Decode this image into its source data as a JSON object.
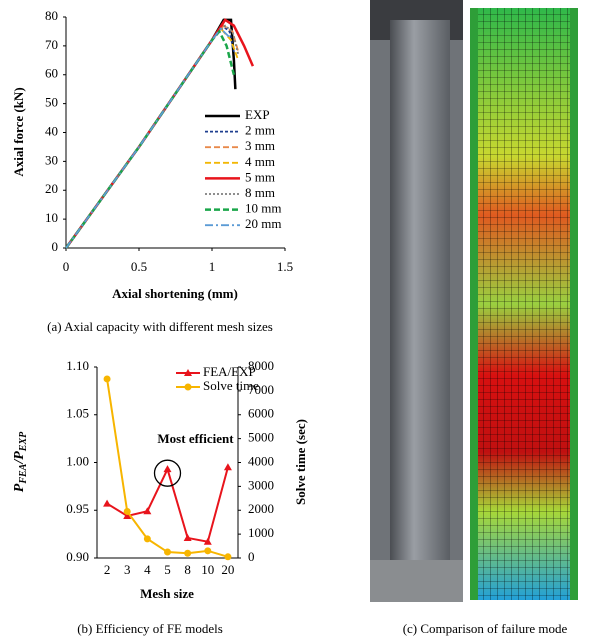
{
  "chart_data": [
    {
      "type": "line",
      "caption": "(a) Axial capacity with different mesh sizes",
      "xlabel": "Axial shortening (mm)",
      "ylabel": "Axial force (kN)",
      "xlim": [
        0,
        1.5
      ],
      "xticks": [
        0,
        0.5,
        1,
        1.5
      ],
      "ylim": [
        0,
        80
      ],
      "yticks": [
        0,
        10,
        20,
        30,
        40,
        50,
        60,
        70,
        80
      ],
      "legend": "right",
      "series": [
        {
          "name": "EXP",
          "color": "#000000",
          "dash": "solid",
          "x": [
            0,
            0.5,
            1.0,
            1.08,
            1.13,
            1.15,
            1.16
          ],
          "values": [
            0,
            35,
            72,
            79,
            79,
            65,
            55
          ]
        },
        {
          "name": "2 mm",
          "color": "#1f3f8f",
          "dash": "dash",
          "x": [
            0,
            0.5,
            1.0,
            1.07,
            1.12,
            1.15
          ],
          "values": [
            0,
            35,
            72,
            77,
            75,
            68
          ]
        },
        {
          "name": "3 mm",
          "color": "#e8894a",
          "dash": "longdash",
          "x": [
            0,
            0.5,
            1.0,
            1.08,
            1.14,
            1.18
          ],
          "values": [
            0,
            35,
            72,
            77,
            75,
            68
          ]
        },
        {
          "name": "4 mm",
          "color": "#f2b705",
          "dash": "longdash",
          "x": [
            0,
            0.5,
            1.0,
            1.06,
            1.13,
            1.18
          ],
          "values": [
            0,
            35,
            72,
            76,
            72,
            65
          ]
        },
        {
          "name": "5 mm",
          "color": "#e8141c",
          "dash": "solid",
          "x": [
            0,
            0.5,
            1.0,
            1.09,
            1.15,
            1.22,
            1.28
          ],
          "values": [
            0,
            35,
            72,
            79,
            77,
            70,
            63
          ]
        },
        {
          "name": "8 mm",
          "color": "#7f7f7f",
          "dash": "dot",
          "x": [
            0,
            0.5,
            1.0,
            1.09,
            1.14,
            1.18
          ],
          "values": [
            0,
            35,
            72,
            77,
            75,
            67
          ]
        },
        {
          "name": "10 mm",
          "color": "#1aa64a",
          "dash": "longdash",
          "x": [
            0,
            0.5,
            1.0,
            1.05,
            1.1,
            1.15
          ],
          "values": [
            0,
            35,
            72,
            75,
            70,
            60
          ]
        },
        {
          "name": "20 mm",
          "color": "#5b9bd5",
          "dash": "dashdot",
          "x": [
            0,
            0.5,
            1.0,
            1.06,
            1.12
          ],
          "values": [
            0,
            35,
            72,
            76,
            73
          ]
        }
      ]
    },
    {
      "type": "line",
      "caption": "(b) Efficiency of FE models",
      "xlabel": "Mesh size",
      "ylabel_parts": [
        "P",
        "FEA",
        "/P",
        "EXP"
      ],
      "y2label": "Solve time (sec)",
      "annotation": "Most efficient",
      "legend": "upper right",
      "categories": [
        "2",
        "3",
        "4",
        "5",
        "8",
        "10",
        "20"
      ],
      "ylim": [
        0.9,
        1.1
      ],
      "yticks": [
        {
          "value": 0.9,
          "label": "0.90"
        },
        {
          "value": 0.95,
          "label": "0.95"
        },
        {
          "value": 1.0,
          "label": "1.00"
        },
        {
          "value": 1.05,
          "label": "1.05"
        },
        {
          "value": 1.1,
          "label": "1.10"
        }
      ],
      "y2lim": [
        0,
        8000
      ],
      "y2ticks": [
        0,
        1000,
        2000,
        3000,
        4000,
        5000,
        6000,
        7000,
        8000
      ],
      "series": [
        {
          "name": "FEA/EXP",
          "color": "#e8141c",
          "marker": "triangle",
          "values": [
            0.957,
            0.944,
            0.949,
            0.993,
            0.921,
            0.917,
            0.995
          ]
        },
        {
          "name": "Solve time",
          "color": "#f7b500",
          "marker": "circle",
          "axis": "y2",
          "values": [
            7500,
            1950,
            800,
            250,
            200,
            300,
            50
          ]
        }
      ]
    }
  ],
  "panel_c": {
    "caption": "(c) Comparison of failure mode"
  }
}
